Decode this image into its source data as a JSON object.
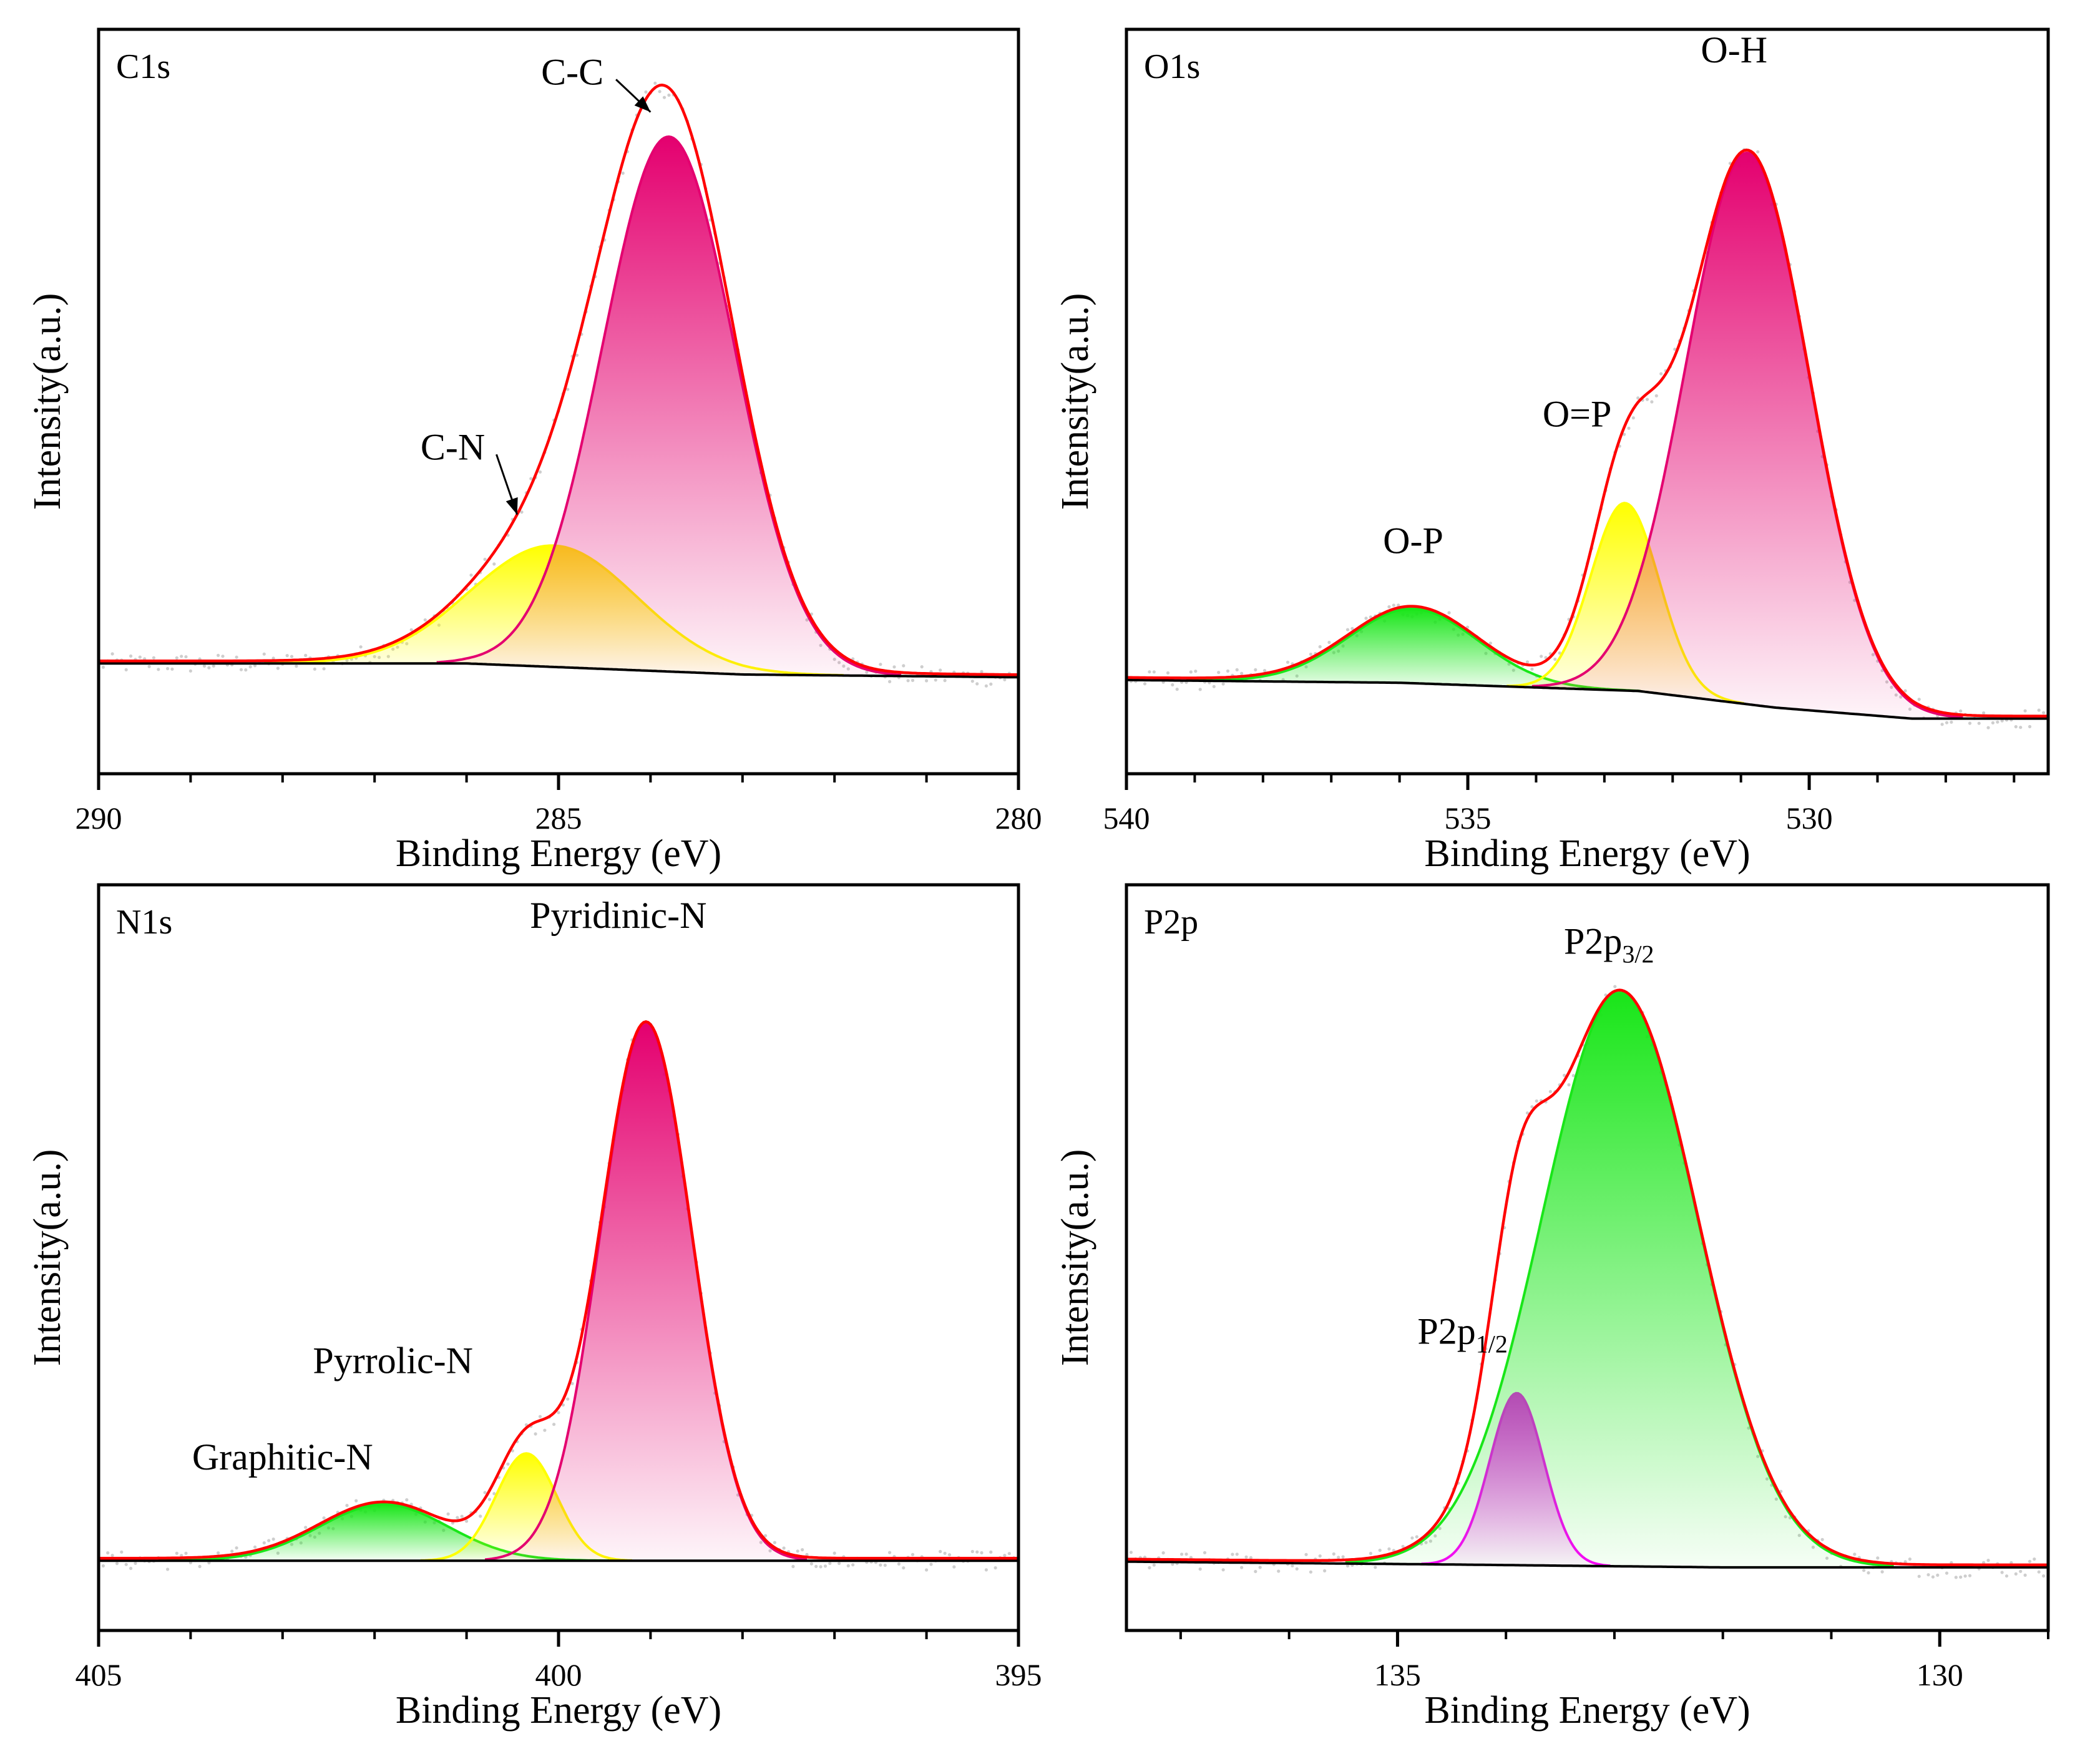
{
  "chart_data": [
    {
      "type": "line",
      "panel_label": "C1s",
      "xlabel": "Binding Energy (eV)",
      "ylabel": "Intensity(a.u.)",
      "xlim": [
        290,
        280
      ],
      "ylim": [
        -0.2,
        1.15
      ],
      "x_reversed": true,
      "tick_values": [
        290,
        285,
        280
      ],
      "tick_labels": [
        "290",
        "285",
        "280"
      ],
      "background_points": [
        [
          290,
          0.0
        ],
        [
          286,
          0.0
        ],
        [
          283,
          -0.02
        ],
        [
          280,
          -0.025
        ]
      ],
      "peaks": [
        {
          "name": "C-N",
          "center": 285.05,
          "height": 0.22,
          "sigma": 0.9,
          "color": "#ffff00"
        },
        {
          "name": "C-C",
          "center": 283.8,
          "height": 0.97,
          "sigma": 0.72,
          "color": "#e4006f"
        }
      ],
      "annotations": [
        {
          "text": "C-C",
          "x": 284.85,
          "y": 1.05,
          "arrow_to": [
            284.0,
            1.0
          ]
        },
        {
          "text": "C-N",
          "x": 286.15,
          "y": 0.37,
          "arrow_to": [
            285.45,
            0.27
          ]
        }
      ],
      "grid": false
    },
    {
      "type": "line",
      "panel_label": "O1s",
      "xlabel": "Binding Energy (eV)",
      "ylabel": "Intensity(a.u.)",
      "xlim": [
        540,
        526.5
      ],
      "ylim": [
        -0.17,
        1.18
      ],
      "x_reversed": true,
      "tick_values": [
        540,
        535,
        530
      ],
      "tick_labels": [
        "540",
        "535",
        "530"
      ],
      "background_points": [
        [
          540,
          0.0
        ],
        [
          536,
          -0.005
        ],
        [
          532.5,
          -0.02
        ],
        [
          530.5,
          -0.05
        ],
        [
          528.5,
          -0.07
        ],
        [
          526.5,
          -0.07
        ]
      ],
      "peaks": [
        {
          "name": "O-P",
          "center": 535.8,
          "height": 0.135,
          "sigma": 0.95,
          "color": "#19e619"
        },
        {
          "name": "O=P",
          "center": 532.7,
          "height": 0.34,
          "sigma": 0.5,
          "color": "#ffff00"
        },
        {
          "name": "O-H",
          "center": 530.9,
          "height": 1.0,
          "sigma": 0.9,
          "color": "#e4006f"
        }
      ],
      "annotations": [
        {
          "text": "O-H",
          "x": 531.1,
          "y": 1.12
        },
        {
          "text": "O=P",
          "x": 533.4,
          "y": 0.46
        },
        {
          "text": "O-P",
          "x": 535.8,
          "y": 0.23
        }
      ],
      "grid": false
    },
    {
      "type": "line",
      "panel_label": "N1s",
      "xlabel": "Binding Energy (eV)",
      "ylabel": "Intensity(a.u.)",
      "xlim": [
        405,
        395
      ],
      "ylim": [
        -0.13,
        1.26
      ],
      "x_reversed": true,
      "tick_values": [
        405,
        400,
        395
      ],
      "tick_labels": [
        "405",
        "400",
        "395"
      ],
      "background_points": [
        [
          405,
          0.0
        ],
        [
          395,
          0.0
        ]
      ],
      "peaks": [
        {
          "name": "Graphitic-N",
          "center": 401.9,
          "height": 0.105,
          "sigma": 0.7,
          "color": "#19e619"
        },
        {
          "name": "Pyrrolic-N",
          "center": 400.35,
          "height": 0.2,
          "sigma": 0.33,
          "color": "#ffff00"
        },
        {
          "name": "Pyridinic-N",
          "center": 399.05,
          "height": 1.0,
          "sigma": 0.5,
          "color": "#e4006f"
        }
      ],
      "annotations": [
        {
          "text": "Pyridinic-N",
          "x": 399.35,
          "y": 1.18
        },
        {
          "text": "Pyrrolic-N",
          "x": 401.8,
          "y": 0.35
        },
        {
          "text": "Graphitic-N",
          "x": 403.0,
          "y": 0.17
        }
      ],
      "grid": false
    },
    {
      "type": "line",
      "panel_label": "P2p",
      "xlabel": "Binding Energy (eV)",
      "ylabel": "Intensity(a.u.)",
      "xlim": [
        137.5,
        129
      ],
      "ylim": [
        -0.12,
        1.18
      ],
      "x_reversed": true,
      "tick_values": [
        135,
        130
      ],
      "tick_labels": [
        "135",
        "130"
      ],
      "background_points": [
        [
          137.5,
          0.0
        ],
        [
          134.5,
          -0.005
        ],
        [
          132,
          -0.01
        ],
        [
          129,
          -0.01
        ]
      ],
      "peaks": [
        {
          "name": "P2p1/2",
          "center": 133.9,
          "height": 0.3,
          "sigma": 0.25,
          "color": "#ff00ff"
        },
        {
          "name": "P2p3/2",
          "center": 132.95,
          "height": 1.0,
          "sigma": 0.72,
          "color": "#19e619"
        }
      ],
      "annotations": [
        {
          "text": "P2p",
          "sub": "3/2",
          "x": 133.05,
          "y": 1.06
        },
        {
          "text": "P2p",
          "sub": "1/2",
          "x": 134.4,
          "y": 0.38
        }
      ],
      "grid": false
    }
  ]
}
